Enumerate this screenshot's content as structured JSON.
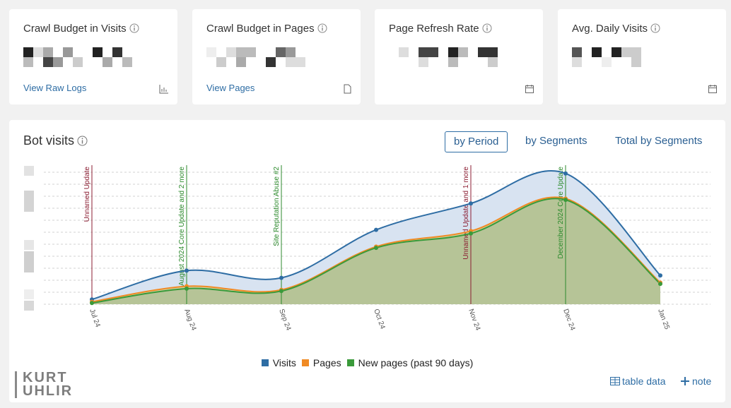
{
  "cards": [
    {
      "title": "Crawl Budget in Visits",
      "link": "View Raw Logs"
    },
    {
      "title": "Crawl Budget in Pages",
      "link": "View Pages"
    },
    {
      "title": "Page Refresh Rate"
    },
    {
      "title": "Avg. Daily Visits"
    }
  ],
  "panel": {
    "title": "Bot visits",
    "tabs": [
      "by Period",
      "by Segments",
      "Total by Segments"
    ],
    "actions": [
      "table data",
      "note"
    ]
  },
  "watermark": [
    "KURT",
    "UHLIR"
  ],
  "chart_data": {
    "type": "area",
    "categories": [
      "Jul 24",
      "Aug 24",
      "Sep 24",
      "Oct 24",
      "Nov 24",
      "Dec 24",
      "Jan 25"
    ],
    "series": [
      {
        "name": "Visits",
        "color": "#2e6da4",
        "fill": "#d8e3f1",
        "values": [
          0.4,
          2.8,
          2.2,
          6.2,
          8.4,
          10.9,
          2.4
        ]
      },
      {
        "name": "Pages",
        "color": "#f08a24",
        "fill": "#cfcf9f",
        "values": [
          0.2,
          1.5,
          1.2,
          4.8,
          6.1,
          8.8,
          1.8
        ]
      },
      {
        "name": "New pages (past 90 days)",
        "color": "#3a9a3a",
        "fill": "#b6c497",
        "values": [
          0.1,
          1.3,
          1.1,
          4.7,
          5.9,
          8.7,
          1.7
        ]
      }
    ],
    "ylim": [
      0,
      11
    ],
    "yticks": [
      0,
      1,
      2,
      3,
      4,
      5,
      6,
      7,
      8,
      9,
      10,
      11
    ],
    "grid": true,
    "annotations": [
      {
        "label": "Unnamed Update",
        "at": "Jul 24",
        "color": "#8b1e33"
      },
      {
        "label": "August 2024 Core Update and 2 more",
        "at": "Aug 24",
        "color": "#2c8a2c"
      },
      {
        "label": "Site Reputation Abuse #2",
        "at": "Sep 24",
        "color": "#2c8a2c"
      },
      {
        "label": "Unnamed Update and 1 more",
        "at": "Nov 24",
        "color": "#8b1e33"
      },
      {
        "label": "December 2024 Core Update",
        "at": "Dec 24",
        "color": "#2c8a2c"
      }
    ]
  }
}
